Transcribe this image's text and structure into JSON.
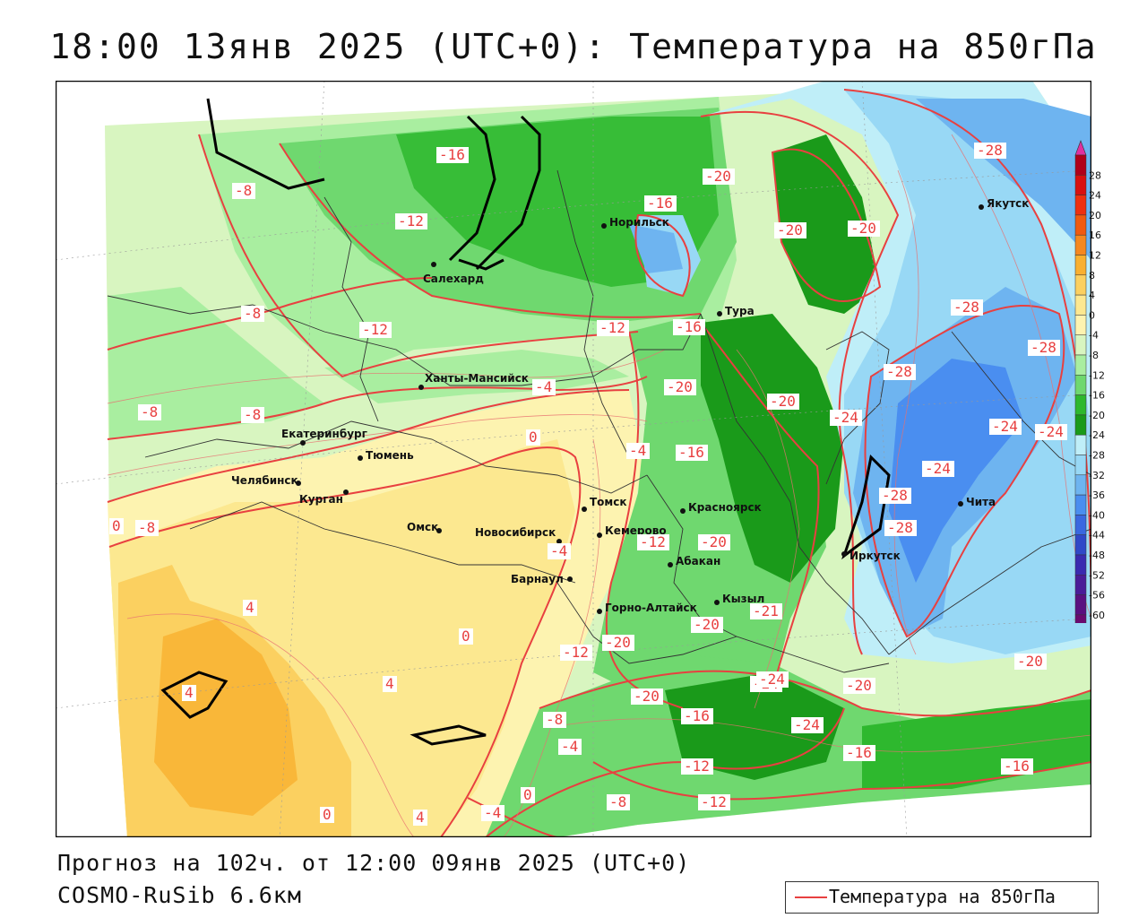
{
  "title": "18:00 13янв 2025 (UTC+0): Температура на 850гПа",
  "footer": {
    "forecast": "Прогноз на 102ч. от 12:00 09янв 2025 (UTC+0)",
    "model": "COSMO-RuSib 6.6км"
  },
  "legend": {
    "label": "Температура на 850гПа",
    "line_color": "#e84040"
  },
  "colorbar": {
    "levels": [
      28,
      24,
      20,
      16,
      12,
      8,
      4,
      0,
      -4,
      -8,
      -12,
      -16,
      -20,
      -24,
      -28,
      -32,
      -36,
      -40,
      -44,
      -48,
      -52,
      -56,
      -60
    ],
    "colors": [
      "#b0001a",
      "#d81010",
      "#ee3010",
      "#f05a10",
      "#f58820",
      "#f9b030",
      "#fbd060",
      "#fce890",
      "#fdf3b0",
      "#d8f5c0",
      "#a9eea0",
      "#6fd86f",
      "#2eb82e",
      "#1a9a1a",
      "#bfeef8",
      "#98d8f5",
      "#6eb4f0",
      "#4a8ef0",
      "#3a68e0",
      "#3048c8",
      "#3a2ab0",
      "#4a1c98",
      "#5a1080",
      "#6a0a70"
    ],
    "top_tip": "#e030a0",
    "bottom_tip": "#8a20c0"
  },
  "cities": [
    {
      "name": "Норильск"
    },
    {
      "name": "Салехард"
    },
    {
      "name": "Тура"
    },
    {
      "name": "Якутск"
    },
    {
      "name": "Ханты-Мансийск"
    },
    {
      "name": "Екатеринбург"
    },
    {
      "name": "Тюмень"
    },
    {
      "name": "Челябинск"
    },
    {
      "name": "Курган"
    },
    {
      "name": "Омск"
    },
    {
      "name": "Новосибирск"
    },
    {
      "name": "Томск"
    },
    {
      "name": "Кемерово"
    },
    {
      "name": "Красноярск"
    },
    {
      "name": "Абакан"
    },
    {
      "name": "Барнаул"
    },
    {
      "name": "Горно-Алтайск"
    },
    {
      "name": "Кызыл"
    },
    {
      "name": "Иркутск"
    },
    {
      "name": "Чита"
    }
  ],
  "contour_labels": [
    "-16",
    "-8",
    "-12",
    "-16",
    "-20",
    "-20",
    "-20",
    "-28",
    "-8",
    "-12",
    "-8",
    "-20",
    "-16",
    "-12",
    "-28",
    "-28",
    "-28",
    "-4",
    "-20",
    "-8",
    "-4",
    "-24",
    "-24",
    "-24",
    "-8",
    "0",
    "-16",
    "-24",
    "0",
    "-28",
    "-28",
    "-4",
    "-12",
    "-20",
    "-21",
    "-20",
    "-20",
    "-12",
    "-24",
    "4",
    "0",
    "-20",
    "-24",
    "-20",
    "-20",
    "4",
    "4",
    "-16",
    "-8",
    "-24",
    "-4",
    "-16",
    "-12",
    "-16",
    "0",
    "-8",
    "-12",
    "0",
    "4",
    "-4"
  ]
}
